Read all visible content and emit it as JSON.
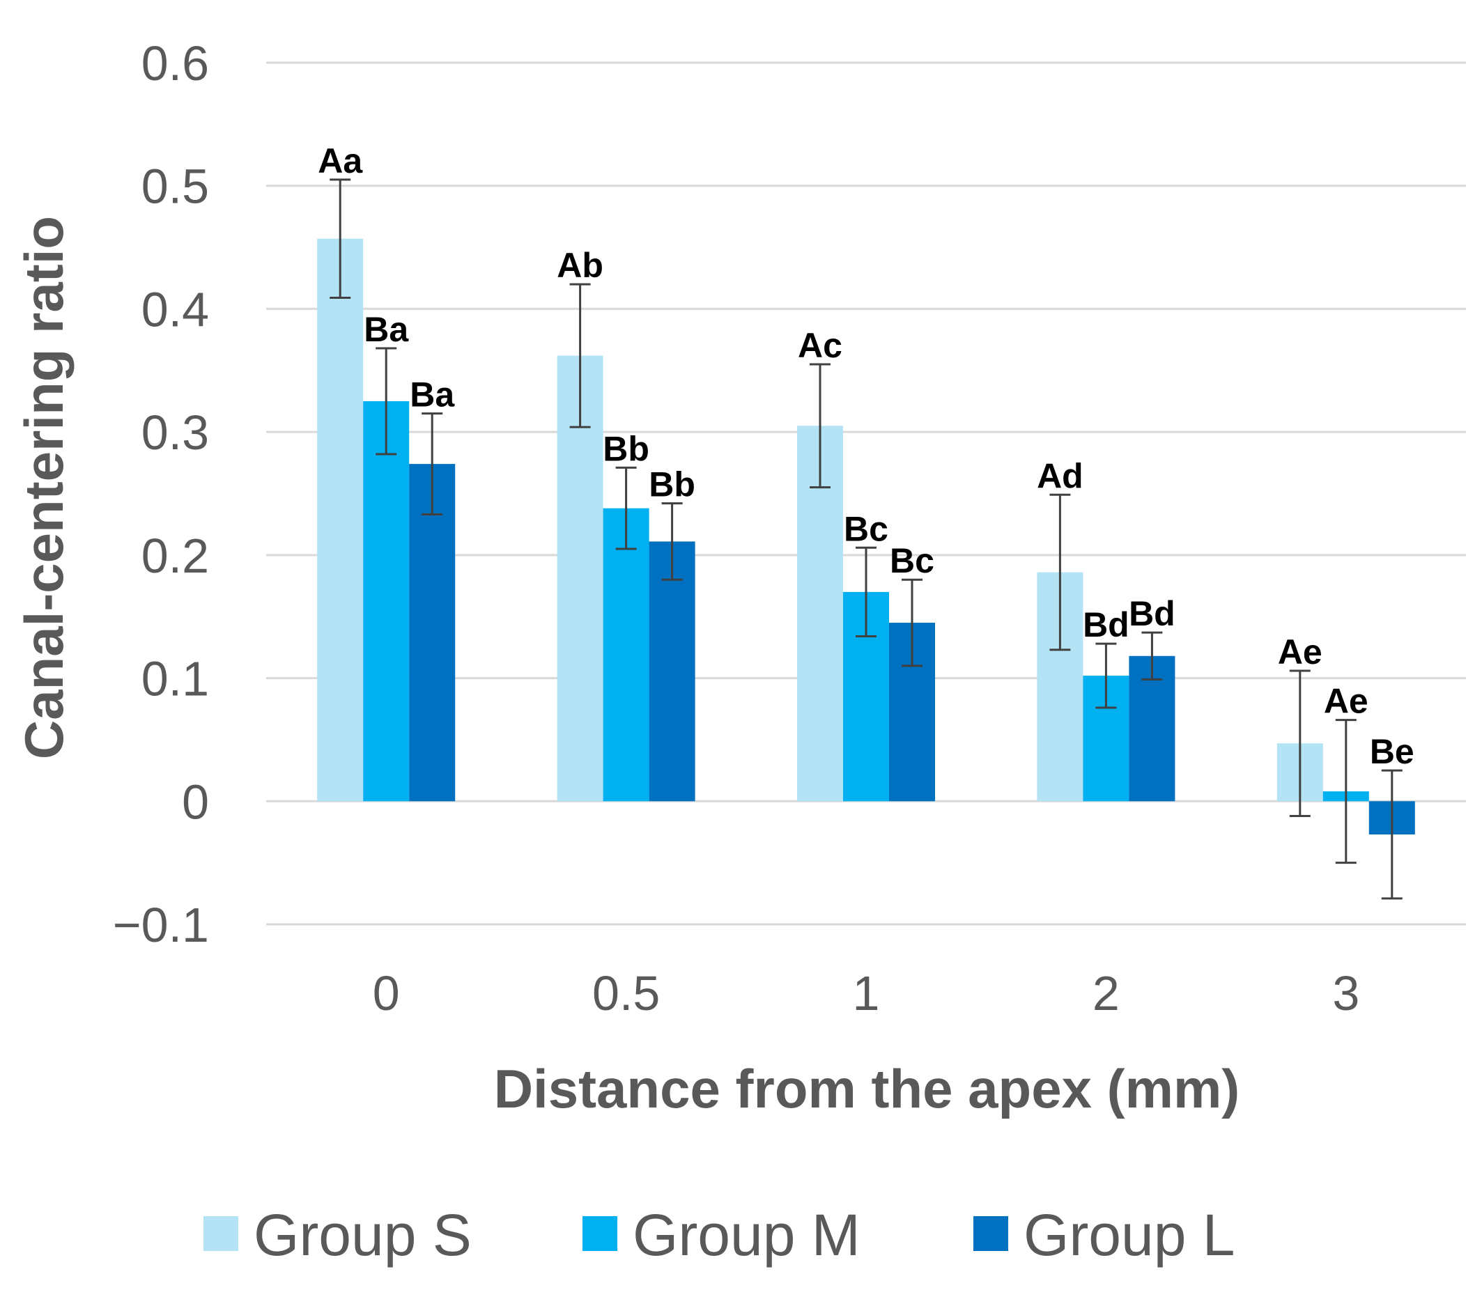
{
  "chart_data": {
    "type": "bar",
    "title": "",
    "xlabel": "Distance from the apex (mm)",
    "ylabel": "Canal-centering ratio",
    "ylim": [
      -0.1,
      0.6
    ],
    "yticks": [
      -0.1,
      0,
      0.1,
      0.2,
      0.3,
      0.4,
      0.5,
      0.6
    ],
    "ytick_labels": [
      "−0.1",
      "0",
      "0.1",
      "0.2",
      "0.3",
      "0.4",
      "0.5",
      "0.6"
    ],
    "grid": "horizontal",
    "legend": "bottom",
    "categories": [
      "0",
      "0.5",
      "1",
      "2",
      "3"
    ],
    "series": [
      {
        "name": "Group S",
        "color": "#b3e3f4",
        "values": [
          0.457,
          0.362,
          0.305,
          0.186,
          0.047
        ],
        "errors": [
          0.048,
          0.058,
          0.05,
          0.063,
          0.059
        ],
        "labels": [
          "Aa",
          "Ab",
          "Ac",
          "Ad",
          "Ae"
        ]
      },
      {
        "name": "Group M",
        "color": "#00b0f0",
        "values": [
          0.325,
          0.238,
          0.17,
          0.102,
          0.008
        ],
        "errors": [
          0.043,
          0.033,
          0.036,
          0.026,
          0.058
        ],
        "labels": [
          "Ba",
          "Bb",
          "Bc",
          "Bd",
          "Ae"
        ]
      },
      {
        "name": "Group L",
        "color": "#0070c0",
        "values": [
          0.274,
          0.211,
          0.145,
          0.118,
          -0.027
        ],
        "errors": [
          0.041,
          0.031,
          0.035,
          0.019,
          0.052
        ],
        "labels": [
          "Ba",
          "Bb",
          "Bc",
          "Bd",
          "Be"
        ]
      }
    ]
  }
}
